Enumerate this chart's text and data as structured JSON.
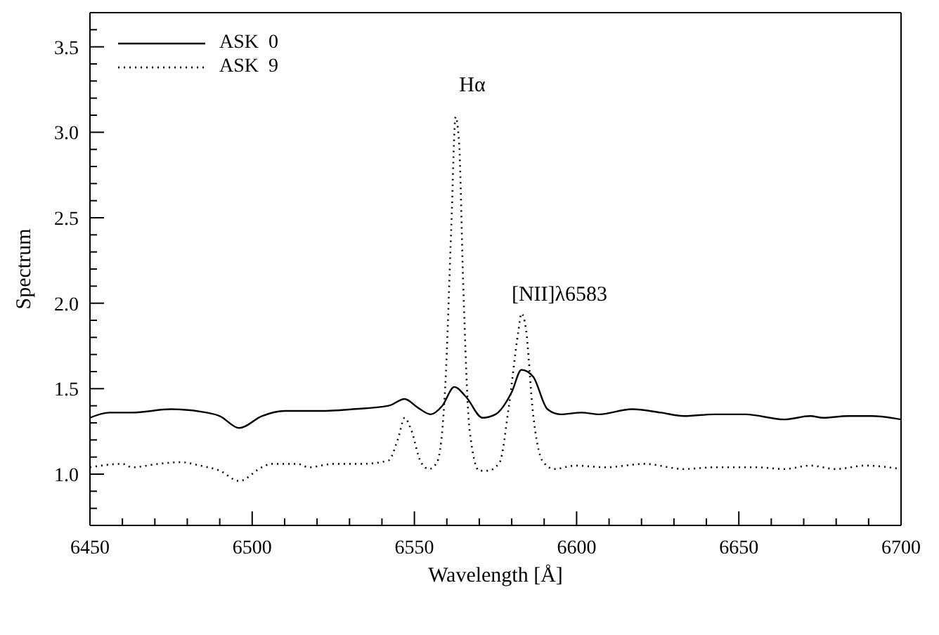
{
  "chart_data": {
    "type": "line",
    "xlabel": "Wavelength [Å]",
    "ylabel": "Spectrum",
    "xlim": [
      6450,
      6700
    ],
    "ylim": [
      0.7,
      3.7
    ],
    "xticks": [
      6450,
      {
        "value": 6460,
        "label": null
      },
      {
        "value": 6470,
        "label": null
      },
      {
        "value": 6480,
        "label": null
      },
      {
        "value": 6490,
        "label": null
      },
      6500,
      {
        "value": 6510,
        "label": null
      },
      {
        "value": 6520,
        "label": null
      },
      {
        "value": 6530,
        "label": null
      },
      {
        "value": 6540,
        "label": null
      },
      6550,
      {
        "value": 6560,
        "label": null
      },
      {
        "value": 6570,
        "label": null
      },
      {
        "value": 6580,
        "label": null
      },
      {
        "value": 6590,
        "label": null
      },
      6600,
      {
        "value": 6610,
        "label": null
      },
      {
        "value": 6620,
        "label": null
      },
      {
        "value": 6630,
        "label": null
      },
      {
        "value": 6640,
        "label": null
      },
      6650,
      {
        "value": 6660,
        "label": null
      },
      {
        "value": 6670,
        "label": null
      },
      {
        "value": 6680,
        "label": null
      },
      {
        "value": 6690,
        "label": null
      },
      6700
    ],
    "yticks": [
      {
        "value": 0.8,
        "label": null
      },
      {
        "value": 0.9,
        "label": null
      },
      {
        "value": 1.0,
        "label": "1.0"
      },
      {
        "value": 1.1,
        "label": null
      },
      {
        "value": 1.2,
        "label": null
      },
      {
        "value": 1.3,
        "label": null
      },
      {
        "value": 1.4,
        "label": null
      },
      1.5,
      {
        "value": 1.6,
        "label": null
      },
      {
        "value": 1.7,
        "label": null
      },
      {
        "value": 1.8,
        "label": null
      },
      {
        "value": 1.9,
        "label": null
      },
      {
        "value": 2.0,
        "label": "2.0"
      },
      {
        "value": 2.1,
        "label": null
      },
      {
        "value": 2.2,
        "label": null
      },
      {
        "value": 2.3,
        "label": null
      },
      {
        "value": 2.4,
        "label": null
      },
      2.5,
      {
        "value": 2.6,
        "label": null
      },
      {
        "value": 2.7,
        "label": null
      },
      {
        "value": 2.8,
        "label": null
      },
      {
        "value": 2.9,
        "label": null
      },
      {
        "value": 3.0,
        "label": "3.0"
      },
      {
        "value": 3.1,
        "label": null
      },
      {
        "value": 3.2,
        "label": null
      },
      {
        "value": 3.3,
        "label": null
      },
      {
        "value": 3.4,
        "label": null
      },
      3.5,
      {
        "value": 3.6,
        "label": null
      }
    ],
    "grid": false,
    "legend": "top left",
    "marker": "none",
    "annotations": [
      "Hα",
      "[NII]λ6583"
    ],
    "series": [
      {
        "name": "ASK  0",
        "color": "#000000",
        "line_style": "solid",
        "x": [
          6450,
          6456,
          6463,
          6475,
          6486,
          6490,
          6496,
          6503,
          6510,
          6521,
          6531,
          6542,
          6547,
          6551,
          6555,
          6558.6,
          6562.3,
          6566,
          6571,
          6575,
          6580,
          6583,
          6586.6,
          6591,
          6595,
          6601.5,
          6607,
          6617,
          6626,
          6633,
          6642.5,
          6652,
          6664,
          6672,
          6676,
          6683.6,
          6691,
          6700
        ],
        "values": [
          1.33,
          1.36,
          1.36,
          1.38,
          1.36,
          1.34,
          1.27,
          1.34,
          1.37,
          1.37,
          1.38,
          1.4,
          1.44,
          1.39,
          1.35,
          1.4,
          1.51,
          1.45,
          1.33,
          1.35,
          1.48,
          1.61,
          1.57,
          1.38,
          1.35,
          1.36,
          1.35,
          1.38,
          1.36,
          1.34,
          1.35,
          1.35,
          1.32,
          1.34,
          1.33,
          1.34,
          1.34,
          1.32
        ]
      },
      {
        "name": "ASK  9",
        "color": "#000000",
        "line_style": "dotted",
        "x": [
          6450,
          6460,
          6463,
          6471,
          6478,
          6484,
          6490,
          6496,
          6503,
          6506,
          6514,
          6517.5,
          6525,
          6534,
          6542,
          6545,
          6547,
          6549,
          6552,
          6554.5,
          6557,
          6559.5,
          6561.4,
          6562.7,
          6563.8,
          6565,
          6567,
          6570,
          6572.6,
          6576.3,
          6579,
          6582,
          6583,
          6584.3,
          6586.6,
          6589.4,
          6593,
          6599.6,
          6609,
          6621,
          6633,
          6642.5,
          6655.6,
          6664,
          6672,
          6680,
          6689,
          6700
        ],
        "values": [
          1.04,
          1.06,
          1.04,
          1.06,
          1.07,
          1.05,
          1.02,
          0.96,
          1.04,
          1.06,
          1.06,
          1.04,
          1.06,
          1.06,
          1.08,
          1.21,
          1.33,
          1.26,
          1.07,
          1.03,
          1.07,
          1.51,
          2.46,
          3.09,
          2.93,
          2.14,
          1.26,
          1.02,
          1.02,
          1.07,
          1.38,
          1.83,
          1.94,
          1.86,
          1.35,
          1.08,
          1.03,
          1.05,
          1.04,
          1.06,
          1.03,
          1.04,
          1.04,
          1.03,
          1.05,
          1.03,
          1.05,
          1.03
        ]
      }
    ]
  }
}
